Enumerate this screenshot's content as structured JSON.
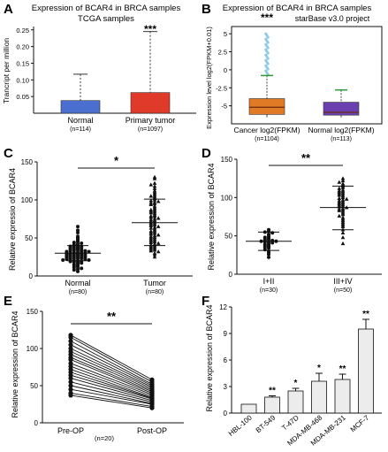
{
  "chart_data": [
    {
      "panel": "A",
      "type": "bar",
      "title": "Expression of BCAR4 in BRCA samples",
      "subtitle": "TCGA samples",
      "ylabel": "Trancript per million",
      "ylim": [
        0,
        0.26
      ],
      "yticks": [
        0.05,
        0.1,
        0.15,
        0.2,
        0.25
      ],
      "ytick_labels": [
        "0.05",
        "0.10",
        "0.15",
        "0.20",
        "0.25"
      ],
      "categories": [
        "Normal",
        "Primary tumor"
      ],
      "category_n": [
        "(n=114)",
        "(n=1097)"
      ],
      "values": [
        0.038,
        0.062
      ],
      "upper": [
        0.117,
        0.245
      ],
      "colors": [
        "#4a6fd0",
        "#e03a2a"
      ],
      "significance": "***"
    },
    {
      "panel": "B",
      "type": "box",
      "title": "Expression of BCAR4 in BRCA samples",
      "subtitle": "starBase v3.0 project",
      "ylabel": "Expression level log2(FPKM+0.01)",
      "ylim": [
        -7.5,
        6
      ],
      "yticks": [
        5,
        2.5,
        0,
        -2.5,
        -5
      ],
      "ytick_labels": [
        "5",
        "2.5",
        "0",
        "-2.5",
        "-5"
      ],
      "categories": [
        "Cancer log2(FPKM)",
        "Normal log2(FPKM)"
      ],
      "category_n": [
        "(n=1104)",
        "(n=113)"
      ],
      "q1": [
        -6.2,
        -6.3
      ],
      "median": [
        -5.2,
        -5.9
      ],
      "q3": [
        -4.0,
        -4.5
      ],
      "whisker_low": [
        -6.6,
        -6.6
      ],
      "whisker_high": [
        -0.8,
        -2.8
      ],
      "outliers_to": [
        5.0,
        null
      ],
      "box_colors": [
        "#e07a24",
        "#6a3fb0"
      ],
      "whisker_colors": [
        "#2a9a3a",
        "#2a9a3a"
      ],
      "significance": "***"
    },
    {
      "panel": "C",
      "type": "scatter",
      "ylabel": "Relative expressio of BCAR4",
      "ylim": [
        0,
        150
      ],
      "yticks": [
        0,
        50,
        100,
        150
      ],
      "categories": [
        "Normal",
        "Tumor"
      ],
      "category_n": [
        "(n=80)",
        "(n=80)"
      ],
      "mean": [
        30,
        70
      ],
      "sd_low": [
        20,
        40
      ],
      "sd_high": [
        40,
        101
      ],
      "series": [
        {
          "values": [
            65,
            60,
            57,
            52,
            50,
            48,
            46,
            45,
            44,
            43,
            42,
            41,
            40,
            40,
            39,
            39,
            38,
            38,
            37,
            37,
            36,
            36,
            35,
            35,
            34,
            34,
            33,
            33,
            33,
            32,
            32,
            31,
            31,
            31,
            30,
            30,
            30,
            29,
            29,
            29,
            28,
            28,
            28,
            27,
            27,
            27,
            26,
            26,
            26,
            25,
            25,
            25,
            24,
            24,
            24,
            23,
            23,
            23,
            22,
            22,
            22,
            21,
            21,
            20,
            20,
            19,
            19,
            18,
            18,
            17,
            16,
            15,
            14,
            13,
            12,
            11,
            10,
            9,
            8,
            6
          ]
        },
        {
          "values": [
            130,
            128,
            122,
            120,
            118,
            115,
            112,
            110,
            108,
            106,
            105,
            104,
            102,
            100,
            99,
            98,
            97,
            96,
            95,
            94,
            92,
            90,
            88,
            87,
            86,
            85,
            84,
            83,
            82,
            80,
            79,
            78,
            77,
            76,
            75,
            74,
            73,
            72,
            71,
            70,
            69,
            68,
            67,
            66,
            65,
            64,
            63,
            62,
            60,
            59,
            58,
            57,
            56,
            55,
            54,
            53,
            52,
            51,
            50,
            49,
            48,
            47,
            46,
            45,
            44,
            43,
            42,
            41,
            40,
            39,
            38,
            37,
            36,
            35,
            34,
            33,
            32,
            30,
            28,
            25
          ]
        }
      ],
      "significance": "*"
    },
    {
      "panel": "D",
      "type": "scatter",
      "ylabel": "Relative expression of BCAR4",
      "ylim": [
        0,
        150
      ],
      "yticks": [
        0,
        50,
        100,
        150
      ],
      "categories": [
        "I+II",
        "III+IV"
      ],
      "category_n": [
        "(n=30)",
        "(n=50)"
      ],
      "mean": [
        43,
        87
      ],
      "sd_low": [
        31,
        58
      ],
      "sd_high": [
        55,
        115
      ],
      "series": [
        {
          "values": [
            58,
            56,
            55,
            54,
            52,
            50,
            49,
            48,
            47,
            46,
            45,
            44,
            44,
            43,
            43,
            42,
            42,
            41,
            40,
            39,
            38,
            37,
            36,
            35,
            34,
            32,
            30,
            28,
            26,
            22
          ]
        },
        {
          "values": [
            125,
            122,
            120,
            118,
            116,
            115,
            113,
            112,
            110,
            109,
            108,
            107,
            106,
            105,
            104,
            103,
            102,
            100,
            99,
            98,
            97,
            96,
            95,
            94,
            93,
            92,
            91,
            90,
            89,
            88,
            87,
            86,
            85,
            84,
            83,
            82,
            80,
            78,
            76,
            74,
            72,
            70,
            68,
            66,
            64,
            62,
            58,
            54,
            48,
            40
          ]
        }
      ],
      "significance": "**"
    },
    {
      "panel": "E",
      "type": "line",
      "ylabel": "Relative expression of BCAR4",
      "ylim": [
        0,
        150
      ],
      "yticks": [
        0,
        50,
        100,
        150
      ],
      "categories": [
        "Pre-OP",
        "Post-OP"
      ],
      "n_label": "(n=20)",
      "pairs": [
        [
          118,
          58
        ],
        [
          115,
          55
        ],
        [
          110,
          52
        ],
        [
          105,
          50
        ],
        [
          100,
          48
        ],
        [
          96,
          46
        ],
        [
          92,
          44
        ],
        [
          88,
          42
        ],
        [
          85,
          40
        ],
        [
          80,
          38
        ],
        [
          76,
          36
        ],
        [
          72,
          34
        ],
        [
          68,
          33
        ],
        [
          64,
          32
        ],
        [
          60,
          30
        ],
        [
          55,
          28
        ],
        [
          50,
          26
        ],
        [
          45,
          25
        ],
        [
          40,
          22
        ],
        [
          37,
          20
        ]
      ],
      "significance": "**"
    },
    {
      "panel": "F",
      "type": "bar",
      "ylabel": "Relative expression of BCAR4",
      "ylim": [
        0,
        12
      ],
      "yticks": [
        0,
        3,
        6,
        9,
        12
      ],
      "categories": [
        "HBL-100",
        "BT-549",
        "T-47D",
        "MDA-MB-468",
        "MDA-MB-231",
        "MCF-7"
      ],
      "values": [
        1.0,
        1.8,
        2.5,
        3.6,
        3.8,
        9.5
      ],
      "errors": [
        0,
        0.15,
        0.3,
        0.9,
        0.6,
        1.1
      ],
      "significance": [
        "",
        "**",
        "*",
        "*",
        "**",
        "**"
      ]
    }
  ]
}
